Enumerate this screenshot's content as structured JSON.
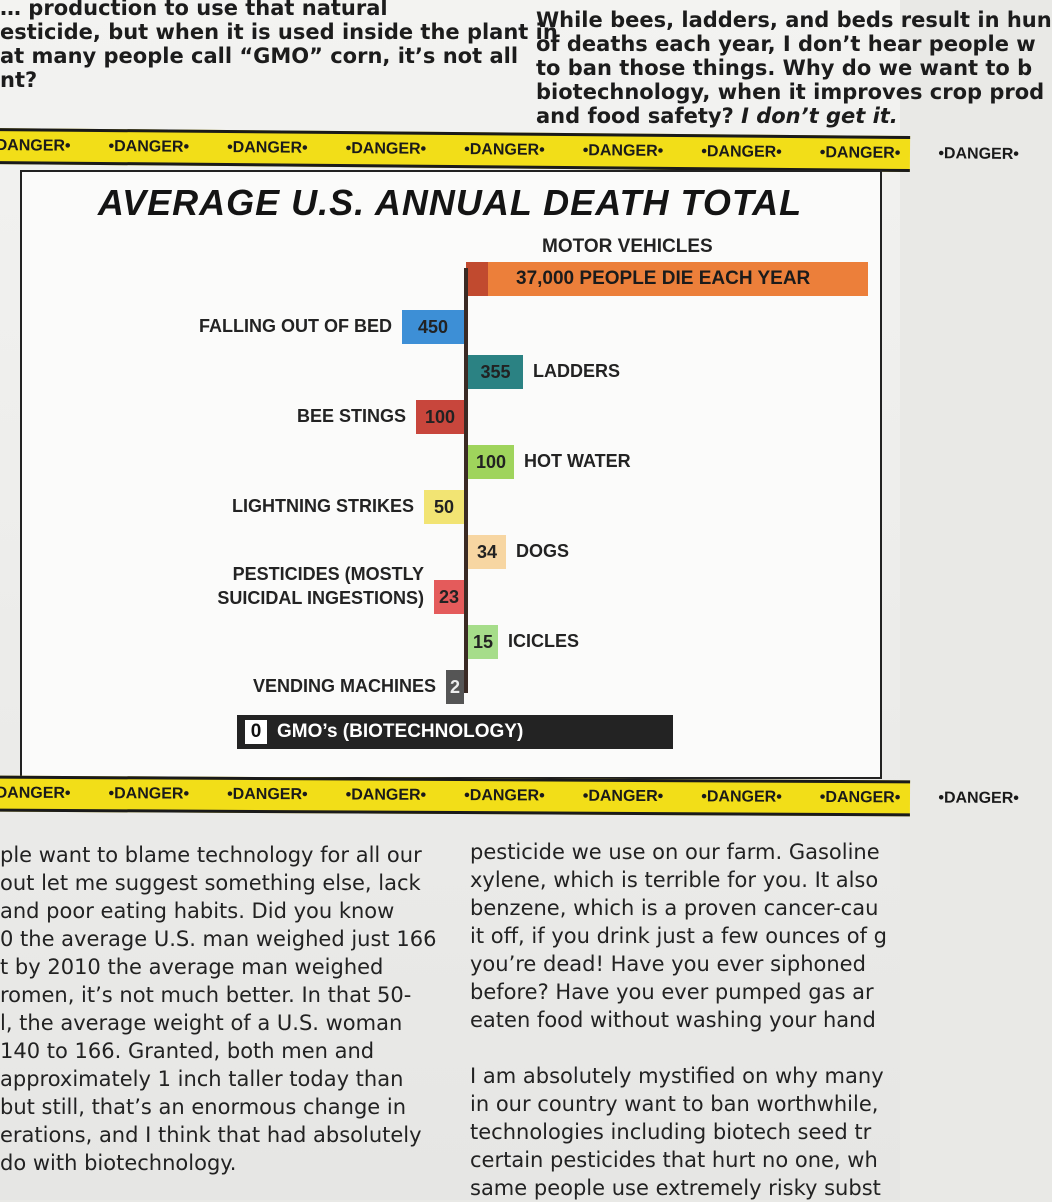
{
  "top_left_lines": [
    "… production to use that natural",
    "esticide, but when it is used inside the plant in",
    "at many people call “GMO” corn, it’s not all",
    "nt?"
  ],
  "top_right_lines": [
    "While bees, ladders, and beds result in hun",
    "of deaths each year, I don’t hear people w",
    "to ban those things.  Why do we want to b",
    "biotechnology, when it improves crop prod"
  ],
  "top_right_last_plain": "and food safety?",
  "top_right_last_italic": "I don’t get it.",
  "tape_text": "•DANGER•",
  "chart_data": {
    "type": "bar",
    "title": "AVERAGE U.S. ANNUAL DEATH TOTAL",
    "top_category": "MOTOR VEHICLES",
    "top_value_text": "37,000 PEOPLE DIE EACH YEAR",
    "top_value": 37000,
    "items": [
      {
        "label": "FALLING OUT OF BED",
        "value": 450,
        "color": "#3d8fd6",
        "side": "left"
      },
      {
        "label": "LADDERS",
        "value": 355,
        "color": "#2b8283",
        "side": "right"
      },
      {
        "label": "BEE STINGS",
        "value": 100,
        "color": "#c8463c",
        "side": "left"
      },
      {
        "label": "HOT WATER",
        "value": 100,
        "color": "#9fd45c",
        "side": "right"
      },
      {
        "label": "LIGHTNING STRIKES",
        "value": 50,
        "color": "#f2e473",
        "side": "left"
      },
      {
        "label": "DOGS",
        "value": 34,
        "color": "#f7d6a2",
        "side": "right"
      },
      {
        "label_lines": [
          "PESTICIDES (MOSTLY",
          "SUICIDAL INGESTIONS)"
        ],
        "value": 23,
        "color": "#e45b5b",
        "side": "left"
      },
      {
        "label": "ICICLES",
        "value": 15,
        "color": "#a6dd8a",
        "side": "right"
      },
      {
        "label": "VENDING MACHINES",
        "value": 2,
        "color": "#555555",
        "side": "left"
      }
    ],
    "bottom_label": "GMO’s (BIOTECHNOLOGY)",
    "bottom_value": 0
  },
  "bottom_left_lines": [
    "ple want to blame technology for all our",
    "out let me suggest something else, lack",
    "and poor eating habits.  Did you know",
    "0 the average U.S. man weighed just 166",
    "t by 2010 the average man weighed",
    "romen, it’s not much better.  In that 50-",
    "l, the average weight of a U.S. woman",
    "140 to 166.  Granted, both men and",
    "approximately 1 inch taller today than",
    "but still, that’s an enormous change in",
    "erations, and I think that had absolutely",
    "do with biotechnology."
  ],
  "bottom_right_lines": [
    "pesticide we use on our farm.  Gasoline",
    "xylene, which is terrible for you.  It also",
    "benzene, which is a proven cancer-cau",
    "it off, if you drink just a few ounces of g",
    "you’re dead!  Have you ever siphoned",
    "before?  Have you ever pumped gas ar",
    "eaten food without washing your hand",
    "",
    "I am absolutely mystified on why many",
    "in our country want to ban worthwhile,",
    "technologies including biotech seed tr",
    "certain pesticides that hurt no one, wh",
    "same people use extremely risky subst"
  ]
}
